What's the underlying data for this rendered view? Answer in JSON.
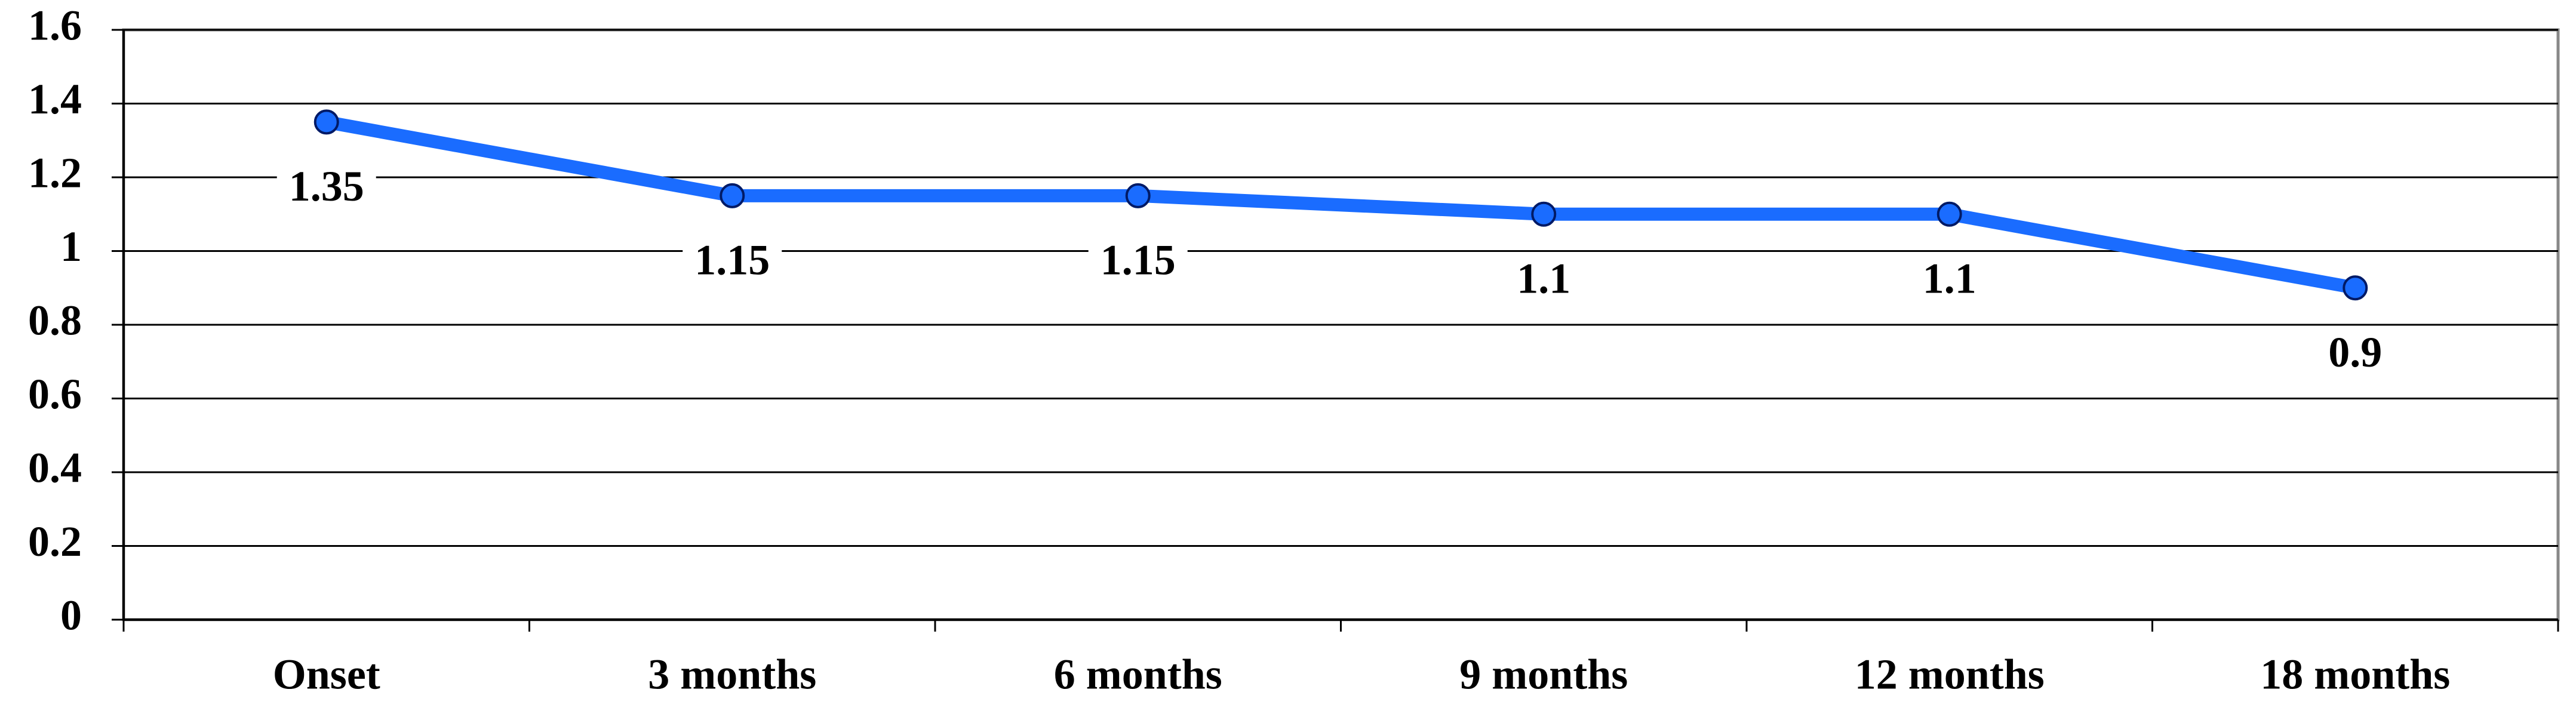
{
  "chart_data": {
    "type": "line",
    "categories": [
      "Onset",
      "3 months",
      "6 months",
      "9 months",
      "12 months",
      "18 months"
    ],
    "values": [
      1.35,
      1.15,
      1.15,
      1.1,
      1.1,
      0.9
    ],
    "color": "#1a6cff",
    "ylim": [
      0,
      1.6
    ],
    "yticks": [
      0,
      0.2,
      0.4,
      0.6,
      0.8,
      1,
      1.2,
      1.4,
      1.6
    ],
    "grid": true
  }
}
